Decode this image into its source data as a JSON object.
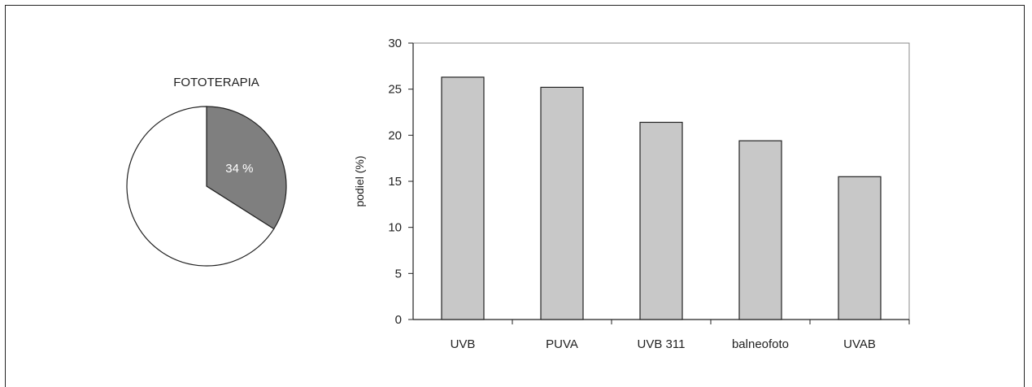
{
  "chart_data": [
    {
      "type": "pie",
      "title": "FOTOTERAPIA",
      "slices": [
        {
          "label": "34 %",
          "value": 34,
          "color": "#7f7f7f"
        },
        {
          "label": "",
          "value": 66,
          "color": "#ffffff"
        }
      ]
    },
    {
      "type": "bar",
      "categories": [
        "UVB",
        "PUVA",
        "UVB 311",
        "balneofoto",
        "UVAB"
      ],
      "values": [
        26.3,
        25.2,
        21.4,
        19.4,
        15.5
      ],
      "ylabel": "podiel (%)",
      "xlabel": "",
      "ylim": [
        0,
        30
      ],
      "yticks": [
        "0",
        "5",
        "10",
        "15",
        "20",
        "25",
        "30"
      ],
      "grid": false,
      "bar_color": "#c8c8c8"
    }
  ]
}
